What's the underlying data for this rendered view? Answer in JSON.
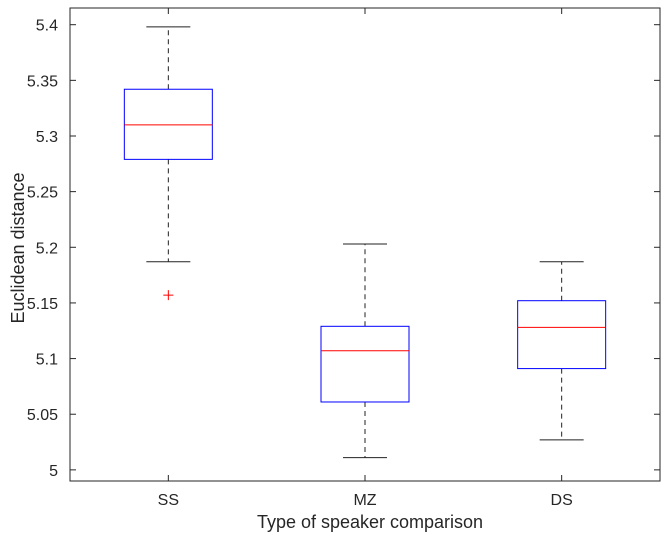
{
  "chart_data": {
    "type": "boxplot",
    "title": "",
    "xlabel": "Type of speaker comparison",
    "ylabel": "Euclidean distance",
    "ylim": [
      4.99,
      5.415
    ],
    "yticks": [
      5,
      5.05,
      5.1,
      5.15,
      5.2,
      5.25,
      5.3,
      5.35,
      5.4
    ],
    "ytick_labels": [
      "5",
      "5.05",
      "5.1",
      "5.15",
      "5.2",
      "5.25",
      "5.3",
      "5.35",
      "5.4"
    ],
    "categories": [
      "SS",
      "MZ",
      "DS"
    ],
    "boxes": [
      {
        "category": "SS",
        "whisker_low": 5.187,
        "q1": 5.279,
        "median": 5.31,
        "q3": 5.342,
        "whisker_high": 5.398,
        "outliers": [
          5.157
        ]
      },
      {
        "category": "MZ",
        "whisker_low": 5.011,
        "q1": 5.061,
        "median": 5.107,
        "q3": 5.129,
        "whisker_high": 5.203,
        "outliers": []
      },
      {
        "category": "DS",
        "whisker_low": 5.027,
        "q1": 5.091,
        "median": 5.128,
        "q3": 5.152,
        "whisker_high": 5.187,
        "outliers": []
      }
    ],
    "colors": {
      "box": "#0000ff",
      "median": "#ff0000",
      "whisker": "#222222",
      "outlier": "#ff0000",
      "axis": "#262626"
    },
    "grid": false,
    "legend": "none"
  }
}
